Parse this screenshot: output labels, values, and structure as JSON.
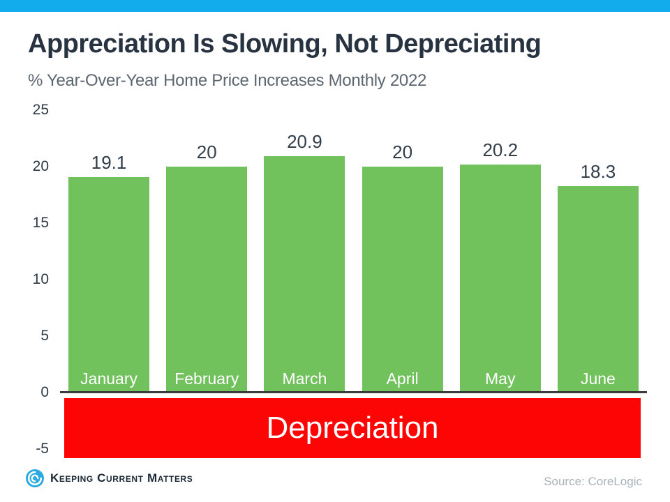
{
  "page": {
    "title": "Appreciation Is Slowing, Not Depreciating",
    "subtitle": "% Year-Over-Year Home Price Increases Monthly 2022"
  },
  "chart_data": {
    "type": "bar",
    "title": "Appreciation Is Slowing, Not Depreciating",
    "subtitle": "% Year-Over-Year Home Price Increases Monthly 2022",
    "categories": [
      "January",
      "February",
      "March",
      "April",
      "May",
      "June"
    ],
    "values": [
      19.1,
      20,
      20.9,
      20,
      20.2,
      18.3
    ],
    "value_labels": [
      "19.1",
      "20",
      "20.9",
      "20",
      "20.2",
      "18.3"
    ],
    "xlabel": "",
    "ylabel": "",
    "y_ticks": [
      25,
      20,
      15,
      10,
      5,
      0,
      -5
    ],
    "ylim": [
      -5.8,
      25
    ],
    "grid": false,
    "legend": false,
    "bar_color": "#71C15D",
    "negative_zone_label": "Depreciation",
    "negative_zone_color": "#FE0505",
    "category_label_color": "#FFFFFF",
    "value_label_color": "#323E4A",
    "tick_label_color": "#2E3944",
    "axis_line_color": "#3C3C3C"
  },
  "footer": {
    "brand": "Keeping Current Matters",
    "source": "Source: CoreLogic"
  },
  "colors": {
    "top_bar": "#12ACEC",
    "title_text": "#273340",
    "subtitle_text": "#5C6670",
    "brand_text": "#1B2936",
    "brand_logo_blue": "#29ABE2",
    "source_text": "#A9B2B9"
  }
}
